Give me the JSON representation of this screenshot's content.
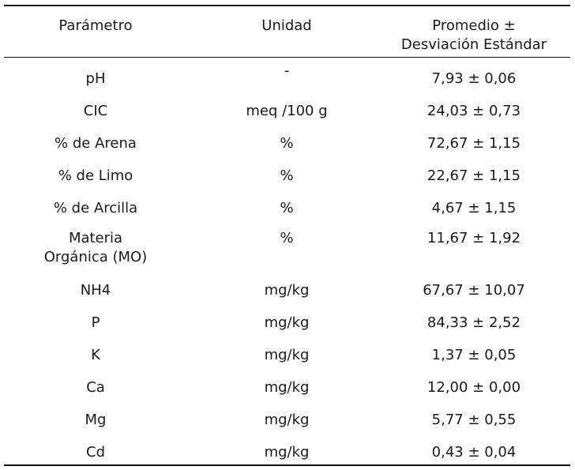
{
  "table": {
    "headers": [
      "Parámetro",
      "Unidad",
      "Promedio ±\nDesviación Estándar"
    ],
    "rows": [
      {
        "param": "pH",
        "unit": "-",
        "value": "7,93 ± 0,06"
      },
      {
        "param": "CIC",
        "unit": "meq /100 g",
        "value": "24,03 ± 0,73"
      },
      {
        "param": "% de Arena",
        "unit": "%",
        "value": "72,67 ± 1,15"
      },
      {
        "param": "% de Limo",
        "unit": "%",
        "value": "22,67 ± 1,15"
      },
      {
        "param": "% de Arcilla",
        "unit": "%",
        "value": "4,67 ± 1,15"
      },
      {
        "param": "Materia\nOrgánica (MO)",
        "unit": "%",
        "value": "11,67 ± 1,92"
      },
      {
        "param": "NH4",
        "unit": "mg/kg",
        "value": "67,67 ± 10,07"
      },
      {
        "param": "P",
        "unit": "mg/kg",
        "value": "84,33 ± 2,52"
      },
      {
        "param": "K",
        "unit": "mg/kg",
        "value": "1,37 ± 0,05"
      },
      {
        "param": "Ca",
        "unit": "mg/kg",
        "value": "12,00 ± 0,00"
      },
      {
        "param": "Mg",
        "unit": "mg/kg",
        "value": "5,77 ± 0,55"
      },
      {
        "param": "Cd",
        "unit": "mg/kg",
        "value": "0,43 ± 0,04"
      }
    ]
  }
}
